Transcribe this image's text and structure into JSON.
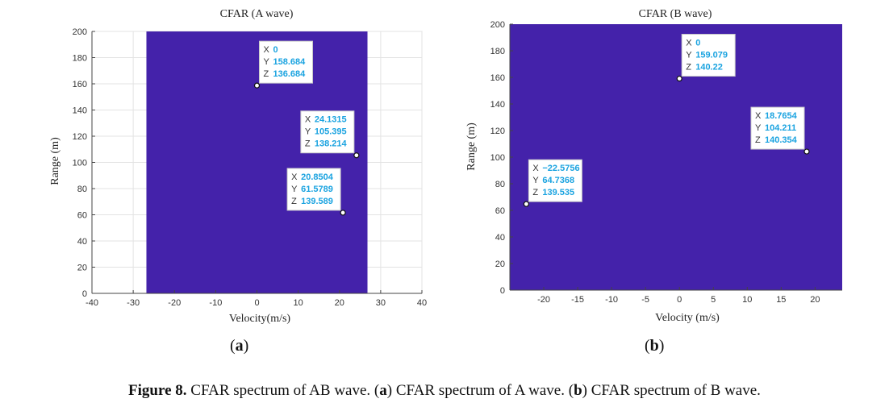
{
  "chart_data": [
    {
      "type": "heatmap",
      "id": "a",
      "title": "CFAR (A wave)",
      "xlabel": "Velocity(m/s)",
      "ylabel": "Range (m)",
      "xlim": [
        -40,
        40
      ],
      "ylim": [
        0,
        200
      ],
      "xticks": [
        -40,
        -30,
        -20,
        -10,
        0,
        10,
        20,
        30,
        40
      ],
      "yticks": [
        0,
        20,
        40,
        60,
        80,
        100,
        120,
        140,
        160,
        180,
        200
      ],
      "grid": true,
      "fill_color": "#4422aa",
      "fill_x_range": [
        -26.8,
        26.8
      ],
      "fill_y_range": [
        0,
        200
      ],
      "datatips": [
        {
          "x": 0,
          "y": 158.684,
          "z": 136.684,
          "x_text": "0",
          "y_text": "158.684",
          "z_text": "136.684",
          "placement": "upper-right"
        },
        {
          "x": 24.1315,
          "y": 105.395,
          "z": 138.214,
          "x_text": "24.1315",
          "y_text": "105.395",
          "z_text": "138.214",
          "placement": "upper-left"
        },
        {
          "x": 20.8504,
          "y": 61.5789,
          "z": 139.589,
          "x_text": "20.8504",
          "y_text": "61.5789",
          "z_text": "139.589",
          "placement": "upper-left"
        }
      ]
    },
    {
      "type": "heatmap",
      "id": "b",
      "title": "CFAR (B wave)",
      "xlabel": "Velocity (m/s)",
      "ylabel": "Range (m)",
      "xlim": [
        -25,
        24
      ],
      "ylim": [
        0,
        200
      ],
      "xticks": [
        -20,
        -15,
        -10,
        -5,
        0,
        5,
        10,
        15,
        20
      ],
      "yticks": [
        0,
        20,
        40,
        60,
        80,
        100,
        120,
        140,
        160,
        180,
        200
      ],
      "grid": false,
      "fill_color": "#4422aa",
      "fill_x_range": [
        -25,
        24
      ],
      "fill_y_range": [
        0,
        200
      ],
      "datatips": [
        {
          "x": 0,
          "y": 159.079,
          "z": 140.22,
          "x_text": "0",
          "y_text": "159.079",
          "z_text": "140.22",
          "placement": "upper-right"
        },
        {
          "x": 18.7654,
          "y": 104.211,
          "z": 140.354,
          "x_text": "18.7654",
          "y_text": "104.211",
          "z_text": "140.354",
          "placement": "upper-left"
        },
        {
          "x": -22.5756,
          "y": 64.7368,
          "z": 139.535,
          "x_text": "−22.5756",
          "y_text": "64.7368",
          "z_text": "139.535",
          "placement": "upper-right"
        }
      ]
    }
  ],
  "datatip_labels": {
    "x": "X",
    "y": "Y",
    "z": "Z"
  },
  "colors": {
    "value_text": "#1aa3e0",
    "key_text": "#333333",
    "tip_border": "#c9c9c9",
    "grid": "#e3e3e3"
  },
  "subfigure_labels": {
    "a": "a",
    "b": "b"
  },
  "caption": {
    "figure_label": "Figure 8.",
    "text_1": " CFAR spectrum of AB wave. (",
    "sub_a": "a",
    "text_2": ") CFAR spectrum of A wave. (",
    "sub_b": "b",
    "text_3": ") CFAR spectrum of B wave."
  }
}
